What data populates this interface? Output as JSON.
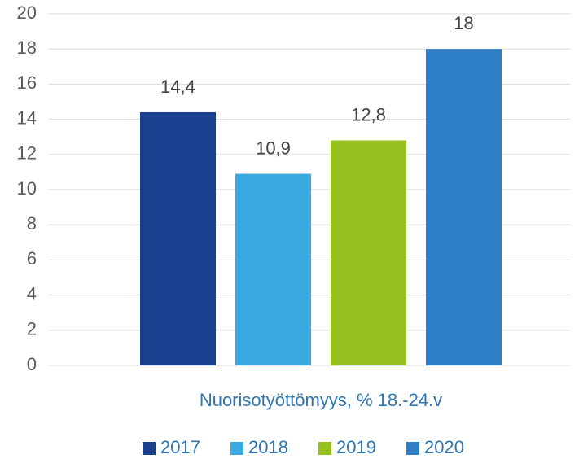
{
  "chart_data": {
    "type": "bar",
    "categories": [
      "Nuorisotyöttömyys, % 18.-24.v"
    ],
    "series": [
      {
        "name": "2017",
        "color": "#1b3f8f",
        "values": [
          14.4
        ],
        "value_labels": [
          "14,4"
        ]
      },
      {
        "name": "2018",
        "color": "#39a9e1",
        "values": [
          10.9
        ],
        "value_labels": [
          "10,9"
        ]
      },
      {
        "name": "2019",
        "color": "#95c11f",
        "values": [
          12.8
        ],
        "value_labels": [
          "12,8"
        ]
      },
      {
        "name": "2020",
        "color": "#2e7fc6",
        "values": [
          18
        ],
        "value_labels": [
          "18"
        ]
      }
    ],
    "ylim": [
      0,
      20
    ],
    "yticks": [
      0,
      2,
      4,
      6,
      8,
      10,
      12,
      14,
      16,
      18,
      20
    ],
    "grid": true,
    "legend": "bottom"
  }
}
